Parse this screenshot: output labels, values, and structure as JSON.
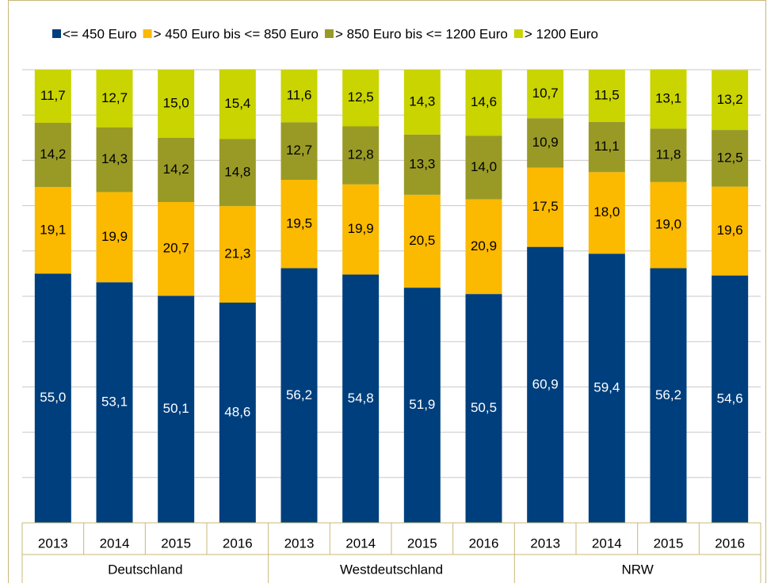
{
  "chart_data": {
    "type": "stacked_bar",
    "categories": [
      "2013",
      "2014",
      "2015",
      "2016",
      "2013",
      "2014",
      "2015",
      "2016",
      "2013",
      "2014",
      "2015",
      "2016"
    ],
    "groups": [
      "Deutschland",
      "Westdeutschland",
      "NRW"
    ],
    "series": [
      {
        "name": "<= 450 Euro",
        "color": "#003f7d",
        "label_color": "#ffffff",
        "values": [
          55.0,
          53.1,
          50.1,
          48.6,
          56.2,
          54.8,
          51.9,
          50.5,
          60.9,
          59.4,
          56.2,
          54.6
        ],
        "value_labels": [
          "55,0",
          "53,1",
          "50,1",
          "48,6",
          "56,2",
          "54,8",
          "51,9",
          "50,5",
          "60,9",
          "59,4",
          "56,2",
          "54,6"
        ]
      },
      {
        "name": "> 450 Euro bis <= 850 Euro",
        "color": "#fbb900",
        "label_color": "#000000",
        "values": [
          19.1,
          19.9,
          20.7,
          21.3,
          19.5,
          19.9,
          20.5,
          20.9,
          17.5,
          18.0,
          19.0,
          19.6
        ],
        "value_labels": [
          "19,1",
          "19,9",
          "20,7",
          "21,3",
          "19,5",
          "19,9",
          "20,5",
          "20,9",
          "17,5",
          "18,0",
          "19,0",
          "19,6"
        ]
      },
      {
        "name": "> 850 Euro bis <= 1200 Euro",
        "color": "#999a26",
        "label_color": "#000000",
        "values": [
          14.2,
          14.3,
          14.2,
          14.8,
          12.7,
          12.8,
          13.3,
          14.0,
          10.9,
          11.1,
          11.8,
          12.5
        ],
        "value_labels": [
          "14,2",
          "14,3",
          "14,2",
          "14,8",
          "12,7",
          "12,8",
          "13,3",
          "14,0",
          "10,9",
          "11,1",
          "11,8",
          "12,5"
        ]
      },
      {
        "name": "> 1200 Euro",
        "color": "#c9d400",
        "label_color": "#000000",
        "values": [
          11.7,
          12.7,
          15.0,
          15.4,
          11.6,
          12.5,
          14.3,
          14.6,
          10.7,
          11.5,
          13.1,
          13.2
        ],
        "value_labels": [
          "11,7",
          "12,7",
          "15,0",
          "15,4",
          "11,6",
          "12,5",
          "14,3",
          "14,6",
          "10,7",
          "11,5",
          "13,1",
          "13,2"
        ]
      }
    ],
    "ylim": [
      0,
      100
    ],
    "yticks": [
      0,
      10,
      20,
      30,
      40,
      50,
      60,
      70,
      80,
      90,
      100
    ],
    "grid": true
  }
}
